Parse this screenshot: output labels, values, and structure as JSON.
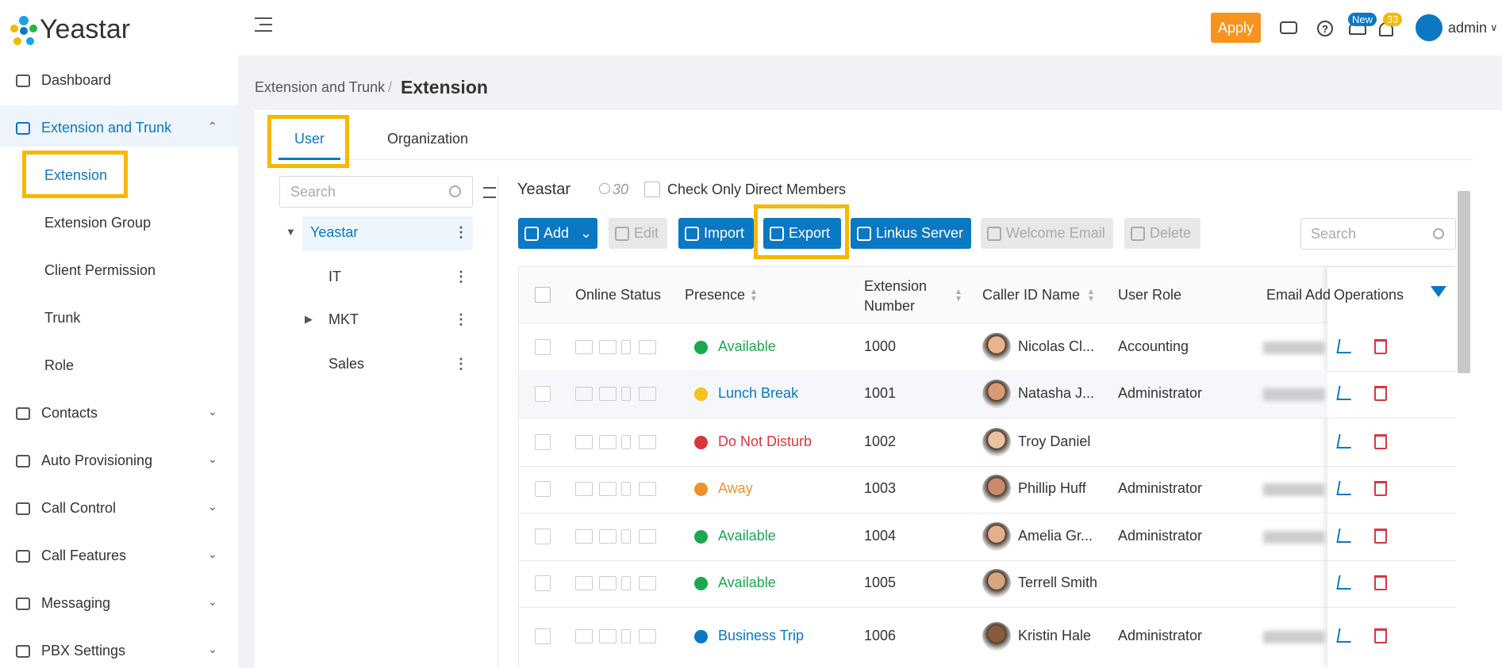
{
  "logo": "Yeastar",
  "sidebar": {
    "items": [
      {
        "label": "Dashboard"
      },
      {
        "label": "Extension and Trunk",
        "active": true,
        "children": [
          "Extension",
          "Extension Group",
          "Client Permission",
          "Trunk",
          "Role"
        ]
      },
      {
        "label": "Contacts"
      },
      {
        "label": "Auto Provisioning"
      },
      {
        "label": "Call Control"
      },
      {
        "label": "Call Features"
      },
      {
        "label": "Messaging"
      },
      {
        "label": "PBX Settings"
      }
    ]
  },
  "header": {
    "apply": "Apply",
    "new_badge": "New",
    "notice_badge": "33",
    "user": "admin"
  },
  "breadcrumb": {
    "parent": "Extension and Trunk",
    "separator": "/",
    "current": "Extension"
  },
  "tabs": [
    "User",
    "Organization"
  ],
  "tree": {
    "search": "Search",
    "nodes": [
      "Yeastar",
      "IT",
      "MKT",
      "Sales"
    ]
  },
  "group": {
    "name": "Yeastar",
    "count": "30",
    "direct_members": "Check Only Direct Members"
  },
  "toolbar": {
    "buttons": [
      "Add",
      "Edit",
      "Import",
      "Export",
      "Linkus Server",
      "Welcome Email",
      "Delete"
    ],
    "search": "Search"
  },
  "table": {
    "columns": [
      "Online Status",
      "Presence",
      "Extension Number",
      "Caller ID Name",
      "User Role",
      "Email Add",
      "Operations"
    ],
    "rows": [
      {
        "presence": "Available",
        "color": "#1aa850",
        "icon": "#1aa850",
        "ext": "1000",
        "name": "Nicolas Cl...",
        "role": "Accounting"
      },
      {
        "presence": "Lunch Break",
        "color": "#0a78c2",
        "icon": "#f5c21a",
        "ext": "1001",
        "name": "Natasha J...",
        "role": "Administrator"
      },
      {
        "presence": "Do Not Disturb",
        "color": "#d9363e",
        "icon": "#d9363e",
        "ext": "1002",
        "name": "Troy Daniel"
      },
      {
        "presence": "Away",
        "color": "#f0912a",
        "icon": "#f0912a",
        "ext": "1003",
        "name": "Phillip Huff",
        "role": "Administrator"
      },
      {
        "presence": "Available",
        "color": "#1aa850",
        "icon": "#1aa850",
        "ext": "1004",
        "name": "Amelia Gr...",
        "role": "Administrator"
      },
      {
        "presence": "Available",
        "color": "#1aa850",
        "icon": "#1aa850",
        "ext": "1005",
        "name": "Terrell Smith"
      },
      {
        "presence": "Business Trip",
        "color": "#0a78c2",
        "icon": "#0a78c2",
        "ext": "1006",
        "name": "Kristin Hale",
        "role": "Administrator"
      }
    ]
  }
}
